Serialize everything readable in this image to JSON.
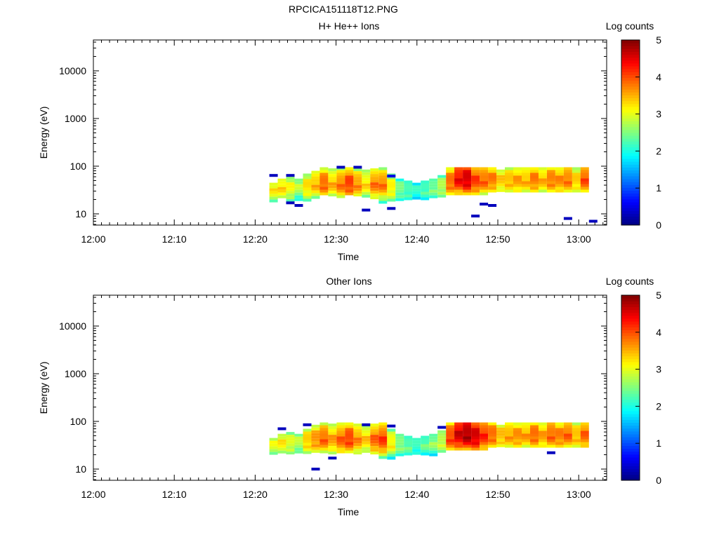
{
  "title": "RPCICA151118T12.PNG",
  "chart_data": [
    {
      "type": "heatmap",
      "title": "H+ He++ Ions",
      "xlabel": "Time",
      "ylabel": "Energy (eV)",
      "colorbar_label": "Log counts",
      "xlim": [
        "12:00",
        "13:03.5"
      ],
      "x_ticks": [
        "12:00",
        "12:10",
        "12:20",
        "12:30",
        "12:40",
        "12:50",
        "13:00"
      ],
      "ylim": [
        5.8,
        44000
      ],
      "y_scale": "log",
      "y_ticks": [
        "10",
        "100",
        "1000",
        "10000"
      ],
      "color_range": [
        0,
        5
      ],
      "color_ticks": [
        "0",
        "1",
        "2",
        "3",
        "4",
        "5"
      ],
      "colormap": "jet",
      "time_bin_start_min": 21.75,
      "time_bin_width_min": 1.04,
      "columns_fields": [
        "low_eV",
        "high_eV",
        "peak_log_counts",
        "peak_eV"
      ],
      "columns": [
        [
          18,
          45,
          3.2,
          32
        ],
        [
          22,
          55,
          3.3,
          34
        ],
        [
          20,
          60,
          3.1,
          34
        ],
        [
          20,
          55,
          2.8,
          36
        ],
        [
          20,
          70,
          3.3,
          36
        ],
        [
          22,
          80,
          3.5,
          40
        ],
        [
          25,
          95,
          3.9,
          42
        ],
        [
          25,
          90,
          3.5,
          40
        ],
        [
          22,
          95,
          3.8,
          40
        ],
        [
          25,
          95,
          4.1,
          42
        ],
        [
          25,
          90,
          3.7,
          40
        ],
        [
          25,
          85,
          3.3,
          40
        ],
        [
          22,
          90,
          3.8,
          40
        ],
        [
          18,
          95,
          3.8,
          40
        ],
        [
          20,
          70,
          3.2,
          34
        ],
        [
          20,
          55,
          2.5,
          32
        ],
        [
          22,
          50,
          2.3,
          30
        ],
        [
          20,
          45,
          2.1,
          30
        ],
        [
          20,
          50,
          2.3,
          32
        ],
        [
          22,
          55,
          2.5,
          34
        ],
        [
          22,
          65,
          2.8,
          36
        ],
        [
          25,
          95,
          3.9,
          45
        ],
        [
          28,
          95,
          4.4,
          52
        ],
        [
          28,
          95,
          4.6,
          52
        ],
        [
          28,
          95,
          4.1,
          48
        ],
        [
          28,
          95,
          3.9,
          48
        ],
        [
          30,
          95,
          3.8,
          50
        ],
        [
          30,
          85,
          3.4,
          48
        ],
        [
          30,
          95,
          3.5,
          48
        ],
        [
          30,
          95,
          3.6,
          48
        ],
        [
          30,
          95,
          3.5,
          48
        ],
        [
          30,
          95,
          3.8,
          50
        ],
        [
          30,
          95,
          3.5,
          48
        ],
        [
          30,
          95,
          3.8,
          50
        ],
        [
          30,
          95,
          3.7,
          48
        ],
        [
          30,
          95,
          3.8,
          50
        ],
        [
          30,
          95,
          3.4,
          48
        ],
        [
          30,
          95,
          4.0,
          50
        ]
      ],
      "isolated_points": [
        [
          0,
          64,
          0.3
        ],
        [
          2,
          64,
          0.3
        ],
        [
          2,
          17,
          0.3
        ],
        [
          3,
          15,
          0.3
        ],
        [
          8,
          95,
          0.3
        ],
        [
          10,
          95,
          0.3
        ],
        [
          11,
          12,
          0.3
        ],
        [
          14,
          13,
          0.3
        ],
        [
          14,
          62,
          0.5
        ],
        [
          24,
          9,
          0.3
        ],
        [
          25,
          16,
          0.3
        ],
        [
          26,
          15,
          0.3
        ],
        [
          35,
          8,
          0.3
        ],
        [
          38,
          7,
          0.3
        ]
      ]
    },
    {
      "type": "heatmap",
      "title": "Other Ions",
      "xlabel": "Time",
      "ylabel": "Energy (eV)",
      "colorbar_label": "Log counts",
      "xlim": [
        "12:00",
        "13:03.5"
      ],
      "x_ticks": [
        "12:00",
        "12:10",
        "12:20",
        "12:30",
        "12:40",
        "12:50",
        "13:00"
      ],
      "ylim": [
        5.8,
        44000
      ],
      "y_scale": "log",
      "y_ticks": [
        "10",
        "100",
        "1000",
        "10000"
      ],
      "color_range": [
        0,
        5
      ],
      "color_ticks": [
        "0",
        "1",
        "2",
        "3",
        "4",
        "5"
      ],
      "colormap": "jet",
      "time_bin_start_min": 21.75,
      "time_bin_width_min": 1.04,
      "columns_fields": [
        "low_eV",
        "high_eV",
        "peak_log_counts",
        "peak_eV"
      ],
      "columns": [
        [
          22,
          45,
          3.0,
          32
        ],
        [
          22,
          55,
          3.2,
          34
        ],
        [
          22,
          60,
          3.0,
          34
        ],
        [
          22,
          55,
          2.8,
          36
        ],
        [
          22,
          70,
          3.4,
          38
        ],
        [
          22,
          85,
          3.7,
          40
        ],
        [
          22,
          95,
          3.9,
          42
        ],
        [
          22,
          90,
          3.6,
          40
        ],
        [
          22,
          95,
          3.9,
          40
        ],
        [
          22,
          95,
          4.1,
          42
        ],
        [
          22,
          90,
          3.7,
          40
        ],
        [
          22,
          85,
          3.4,
          40
        ],
        [
          22,
          90,
          3.9,
          40
        ],
        [
          18,
          95,
          4.1,
          40
        ],
        [
          18,
          70,
          3.2,
          34
        ],
        [
          20,
          55,
          2.6,
          32
        ],
        [
          20,
          50,
          2.4,
          30
        ],
        [
          20,
          45,
          2.2,
          30
        ],
        [
          20,
          50,
          2.4,
          32
        ],
        [
          20,
          55,
          2.6,
          34
        ],
        [
          22,
          65,
          2.9,
          36
        ],
        [
          25,
          95,
          4.1,
          45
        ],
        [
          28,
          95,
          4.6,
          52
        ],
        [
          28,
          95,
          4.8,
          52
        ],
        [
          28,
          95,
          4.6,
          48
        ],
        [
          28,
          95,
          4.2,
          48
        ],
        [
          30,
          95,
          3.9,
          50
        ],
        [
          30,
          85,
          3.5,
          48
        ],
        [
          30,
          95,
          3.6,
          48
        ],
        [
          30,
          95,
          3.7,
          48
        ],
        [
          30,
          95,
          3.6,
          48
        ],
        [
          30,
          95,
          3.9,
          50
        ],
        [
          30,
          95,
          3.6,
          48
        ],
        [
          30,
          95,
          3.9,
          50
        ],
        [
          30,
          95,
          3.8,
          48
        ],
        [
          30,
          95,
          3.9,
          50
        ],
        [
          30,
          95,
          3.5,
          48
        ],
        [
          30,
          95,
          3.9,
          50
        ]
      ],
      "isolated_points": [
        [
          1,
          70,
          0.3
        ],
        [
          4,
          85,
          0.3
        ],
        [
          5,
          10,
          0.3
        ],
        [
          7,
          17,
          0.3
        ],
        [
          11,
          85,
          0.3
        ],
        [
          14,
          80,
          0.3
        ],
        [
          20,
          75,
          0.3
        ],
        [
          33,
          22,
          0.3
        ]
      ]
    }
  ]
}
